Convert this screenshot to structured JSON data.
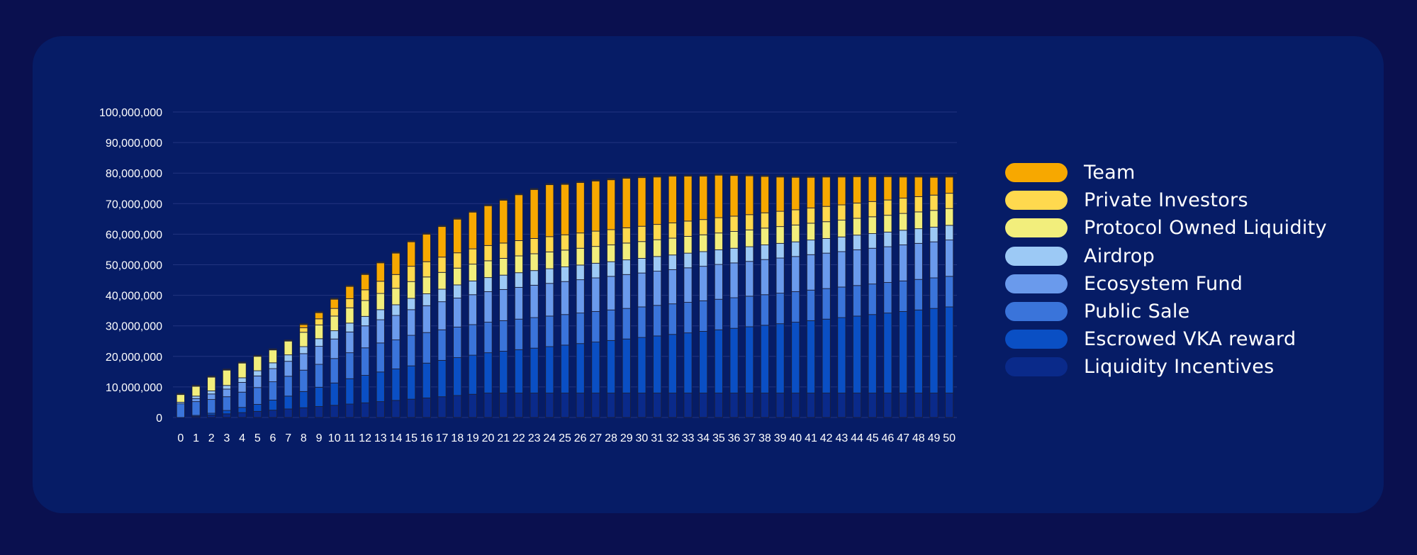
{
  "colors": {
    "page_background": "#0a104f",
    "panel_background": "#061c66",
    "gridline": "#223480",
    "axis_text": "#ffffff"
  },
  "chart_data": {
    "type": "bar",
    "stacked": true,
    "title": "",
    "xlabel": "",
    "ylabel": "",
    "ylim": [
      0,
      100000000
    ],
    "y_ticks": [
      0,
      10000000,
      20000000,
      30000000,
      40000000,
      50000000,
      60000000,
      70000000,
      80000000,
      90000000,
      100000000
    ],
    "y_tick_labels": [
      "0",
      "10,000,000",
      "20,000,000",
      "30,000,000",
      "40,000,000",
      "50,000,000",
      "60,000,000",
      "70,000,000",
      "80,000,000",
      "90,000,000",
      "100,000,000"
    ],
    "grid": true,
    "legend_position": "right",
    "categories": [
      "0",
      "1",
      "2",
      "3",
      "4",
      "5",
      "6",
      "7",
      "8",
      "9",
      "10",
      "11",
      "12",
      "13",
      "14",
      "15",
      "16",
      "17",
      "18",
      "19",
      "20",
      "21",
      "22",
      "23",
      "24",
      "25",
      "26",
      "27",
      "28",
      "29",
      "30",
      "31",
      "32",
      "33",
      "34",
      "35",
      "36",
      "37",
      "38",
      "39",
      "40",
      "41",
      "42",
      "43",
      "44",
      "45",
      "46",
      "47",
      "48",
      "49",
      "50"
    ],
    "series": [
      {
        "name": "Liquidity Incentives",
        "color": "#0a2a8a",
        "values": [
          0,
          400000,
          800000,
          1200000,
          1600000,
          2000000,
          2400000,
          2800000,
          3200000,
          3600000,
          4000000,
          4400000,
          4800000,
          5200000,
          5600000,
          6000000,
          6400000,
          6800000,
          7200000,
          7600000,
          8000000,
          8000000,
          8000000,
          8000000,
          8000000,
          8000000,
          8000000,
          8000000,
          8000000,
          8000000,
          8000000,
          8000000,
          8000000,
          8000000,
          8000000,
          8000000,
          8000000,
          8000000,
          8000000,
          8000000,
          8000000,
          8000000,
          8000000,
          8000000,
          8000000,
          8000000,
          8000000,
          8000000,
          8000000,
          8000000,
          8000000
        ]
      },
      {
        "name": "Escrowed VKA reward",
        "color": "#0a4fc4",
        "values": [
          0,
          300000,
          600000,
          1100000,
          1700000,
          2300000,
          3300000,
          4200000,
          5300000,
          6300000,
          7300000,
          8300000,
          9000000,
          9700000,
          10300000,
          10900000,
          11400000,
          11900000,
          12400000,
          12800000,
          13200000,
          13700000,
          14200000,
          14700000,
          15200000,
          15700000,
          16200000,
          16700000,
          17200000,
          17700000,
          18200000,
          18700000,
          19200000,
          19700000,
          20200000,
          20700000,
          21200000,
          21700000,
          22200000,
          22700000,
          23200000,
          23700000,
          24200000,
          24700000,
          25200000,
          25700000,
          26200000,
          26700000,
          27200000,
          27700000,
          28200000
        ]
      },
      {
        "name": "Public Sale",
        "color": "#3a74da",
        "values": [
          4500000,
          4500000,
          4500000,
          4500000,
          5000000,
          5500000,
          6000000,
          6500000,
          7000000,
          7500000,
          8000000,
          8500000,
          9000000,
          9500000,
          9500000,
          10000000,
          10000000,
          10000000,
          10000000,
          10000000,
          10000000,
          10000000,
          10000000,
          10000000,
          10000000,
          10000000,
          10000000,
          10000000,
          10000000,
          10000000,
          10000000,
          10000000,
          10000000,
          10000000,
          10000000,
          10000000,
          10000000,
          10000000,
          10000000,
          10000000,
          10000000,
          10000000,
          10000000,
          10000000,
          10000000,
          10000000,
          10000000,
          10000000,
          10000000,
          10000000,
          10000000
        ]
      },
      {
        "name": "Ecosystem Fund",
        "color": "#6a9aec",
        "values": [
          0,
          1000000,
          1800000,
          2500000,
          3200000,
          3800000,
          4300000,
          4900000,
          5400000,
          5900000,
          6400000,
          6800000,
          7200000,
          7600000,
          8000000,
          8400000,
          8800000,
          9200000,
          9500000,
          9800000,
          10000000,
          10200000,
          10400000,
          10600000,
          10700000,
          10800000,
          10900000,
          11000000,
          11000000,
          11100000,
          11100000,
          11200000,
          11200000,
          11300000,
          11300000,
          11400000,
          11400000,
          11400000,
          11500000,
          11500000,
          11500000,
          11600000,
          11600000,
          11600000,
          11700000,
          11700000,
          11700000,
          11800000,
          11800000,
          11800000,
          11900000
        ]
      },
      {
        "name": "Airdrop",
        "color": "#9cc9f5",
        "values": [
          500000,
          800000,
          1000000,
          1200000,
          1500000,
          1700000,
          1900000,
          2100000,
          2300000,
          2500000,
          2700000,
          2900000,
          3100000,
          3300000,
          3500000,
          3700000,
          3900000,
          4100000,
          4300000,
          4500000,
          4600000,
          4700000,
          4800000,
          4800000,
          4800000,
          4800000,
          4800000,
          4800000,
          4800000,
          4800000,
          4800000,
          4800000,
          4800000,
          4800000,
          4800000,
          4800000,
          4800000,
          4800000,
          4800000,
          4800000,
          4800000,
          4800000,
          4800000,
          4800000,
          4800000,
          4800000,
          4800000,
          4800000,
          4800000,
          4800000,
          4800000
        ]
      },
      {
        "name": "Protocol Owned Liquidity",
        "color": "#f2ee7c",
        "values": [
          2500000,
          3200000,
          4500000,
          5000000,
          4800000,
          4700000,
          4200000,
          4500000,
          4700000,
          4500000,
          4800000,
          5000000,
          5200000,
          5300000,
          5400000,
          5500000,
          5500000,
          5500000,
          5500000,
          5500000,
          5500000,
          5500000,
          5500000,
          5500000,
          5500000,
          5500000,
          5500000,
          5500000,
          5500000,
          5500000,
          5500000,
          5500000,
          5500000,
          5500000,
          5500000,
          5500000,
          5500000,
          5500000,
          5500000,
          5500000,
          5500000,
          5500000,
          5500000,
          5500000,
          5500000,
          5500000,
          5500000,
          5500000,
          5500000,
          5500000,
          5500000
        ]
      },
      {
        "name": "Private Investors",
        "color": "#ffd94e",
        "values": [
          0,
          0,
          0,
          0,
          0,
          0,
          0,
          0,
          1500000,
          2000000,
          2500000,
          3000000,
          3500000,
          4000000,
          4500000,
          5000000,
          5000000,
          5000000,
          5000000,
          5000000,
          5000000,
          5000000,
          5000000,
          5000000,
          5000000,
          5000000,
          5000000,
          5000000,
          5000000,
          5000000,
          5000000,
          5000000,
          5000000,
          5000000,
          5000000,
          5000000,
          5000000,
          5000000,
          5000000,
          5000000,
          5000000,
          5000000,
          5000000,
          5000000,
          5000000,
          5000000,
          5000000,
          5000000,
          5000000,
          5000000,
          5000000
        ]
      },
      {
        "name": "Team",
        "color": "#f7a800",
        "values": [
          0,
          0,
          0,
          0,
          0,
          0,
          0,
          0,
          1000000,
          2000000,
          3000000,
          4000000,
          5000000,
          6000000,
          7000000,
          8000000,
          9000000,
          10000000,
          11000000,
          12000000,
          13000000,
          14000000,
          15000000,
          16000000,
          17000000,
          16500000,
          16500000,
          16400000,
          16300000,
          16200000,
          15900000,
          15500000,
          15300000,
          14700000,
          14200000,
          13900000,
          13300000,
          12700000,
          11900000,
          11200000,
          10600000,
          10000000,
          9600000,
          9100000,
          8600000,
          8100000,
          7600000,
          6900000,
          6400000,
          5800000,
          5300000
        ]
      }
    ]
  }
}
